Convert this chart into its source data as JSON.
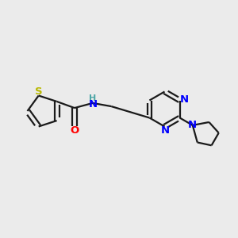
{
  "bg_color": "#ebebeb",
  "bond_color": "#1a1a1a",
  "S_color": "#b8b800",
  "O_color": "#ff0000",
  "N_color": "#0000ff",
  "NH_color": "#4da6a6",
  "linewidth": 1.6,
  "figsize": [
    3.0,
    3.0
  ],
  "dpi": 100,
  "xlim": [
    0,
    12
  ],
  "ylim": [
    0,
    10
  ]
}
